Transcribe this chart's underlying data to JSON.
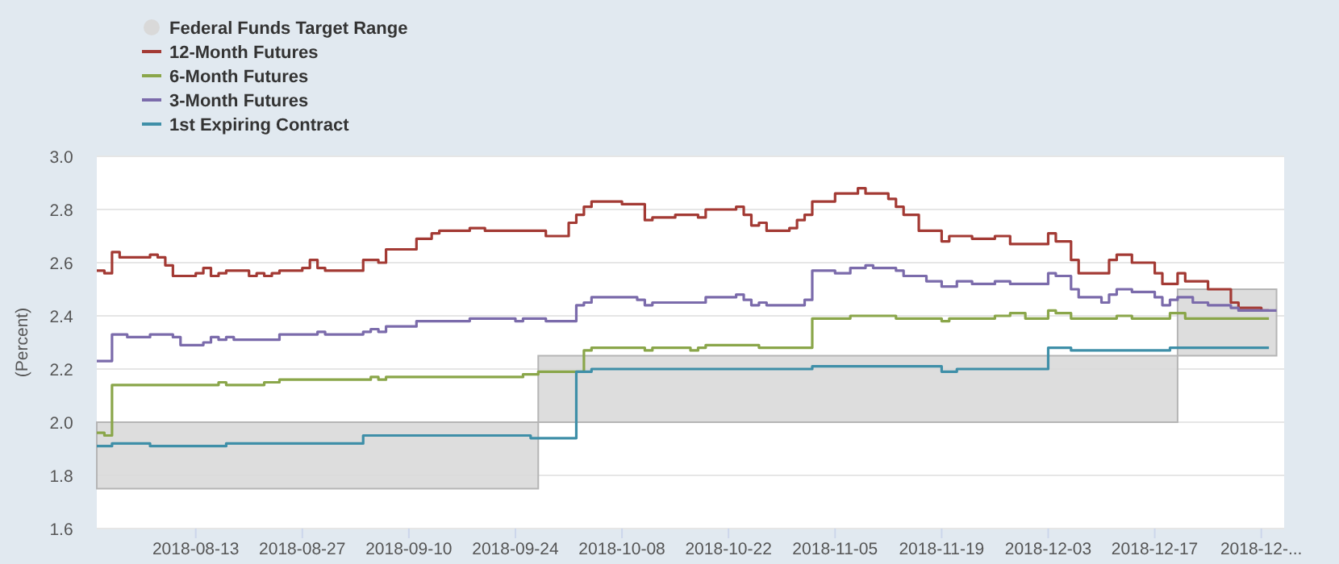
{
  "chart_data": {
    "type": "step",
    "ylabel": "(Percent)",
    "xlim": [
      "2018-07-31",
      "2019-01-03"
    ],
    "xticks": [
      "2018-08-13",
      "2018-08-27",
      "2018-09-10",
      "2018-09-24",
      "2018-10-08",
      "2018-10-22",
      "2018-11-05",
      "2018-11-19",
      "2018-12-03",
      "2018-12-17",
      {
        "value": "2018-12-31",
        "label": "2018-12-..."
      }
    ],
    "ylim": [
      1.6,
      3.0
    ],
    "yticks": [
      {
        "value": 1.6,
        "label": "1.6"
      },
      {
        "value": 1.8,
        "label": "1.8"
      },
      {
        "value": 2.0,
        "label": "2.0"
      },
      {
        "value": 2.2,
        "label": "2.2"
      },
      {
        "value": 2.4,
        "label": "2.4"
      },
      {
        "value": 2.6,
        "label": "2.6"
      },
      {
        "value": 2.8,
        "label": "2.8"
      },
      {
        "value": 3.0,
        "label": "3.0"
      }
    ],
    "grid": "y",
    "legend": "top left",
    "series": [
      {
        "name": "Federal Funds Target Range",
        "type": "area",
        "color": "#d9d9d9",
        "x": [
          "2018-07-31",
          "2018-09-27",
          "2018-12-20",
          "2019-01-02"
        ],
        "values": [
          null,
          null,
          null,
          null
        ],
        "lower": [
          1.75,
          2.0,
          2.25,
          2.25
        ],
        "upper": [
          2.0,
          2.25,
          2.5,
          2.5
        ]
      },
      {
        "name": "12-Month Futures",
        "color": "#a33a34",
        "x": [
          "2018-07-31",
          "2018-08-01",
          "2018-08-02",
          "2018-08-03",
          "2018-08-07",
          "2018-08-08",
          "2018-08-09",
          "2018-08-10",
          "2018-08-13",
          "2018-08-14",
          "2018-08-15",
          "2018-08-16",
          "2018-08-17",
          "2018-08-20",
          "2018-08-21",
          "2018-08-22",
          "2018-08-23",
          "2018-08-24",
          "2018-08-27",
          "2018-08-28",
          "2018-08-29",
          "2018-08-30",
          "2018-09-04",
          "2018-09-06",
          "2018-09-07",
          "2018-09-11",
          "2018-09-13",
          "2018-09-14",
          "2018-09-18",
          "2018-09-20",
          "2018-09-28",
          "2018-10-01",
          "2018-10-02",
          "2018-10-03",
          "2018-10-04",
          "2018-10-08",
          "2018-10-11",
          "2018-10-12",
          "2018-10-15",
          "2018-10-17",
          "2018-10-18",
          "2018-10-19",
          "2018-10-23",
          "2018-10-24",
          "2018-10-25",
          "2018-10-26",
          "2018-10-27",
          "2018-10-30",
          "2018-10-31",
          "2018-11-01",
          "2018-11-02",
          "2018-11-05",
          "2018-11-07",
          "2018-11-08",
          "2018-11-09",
          "2018-11-12",
          "2018-11-13",
          "2018-11-14",
          "2018-11-16",
          "2018-11-19",
          "2018-11-20",
          "2018-11-22",
          "2018-11-23",
          "2018-11-26",
          "2018-11-28",
          "2018-12-03",
          "2018-12-04",
          "2018-12-06",
          "2018-12-07",
          "2018-12-11",
          "2018-12-12",
          "2018-12-14",
          "2018-12-17",
          "2018-12-18",
          "2018-12-20",
          "2018-12-21",
          "2018-12-24",
          "2018-12-27",
          "2018-12-28",
          "2018-12-31",
          "2019-01-01"
        ],
        "values": [
          2.57,
          2.56,
          2.64,
          2.62,
          2.63,
          2.62,
          2.59,
          2.55,
          2.56,
          2.58,
          2.55,
          2.56,
          2.57,
          2.55,
          2.56,
          2.55,
          2.56,
          2.57,
          2.58,
          2.61,
          2.58,
          2.57,
          2.61,
          2.6,
          2.65,
          2.69,
          2.71,
          2.72,
          2.73,
          2.72,
          2.7,
          2.75,
          2.78,
          2.81,
          2.83,
          2.82,
          2.76,
          2.77,
          2.78,
          2.78,
          2.77,
          2.8,
          2.81,
          2.78,
          2.74,
          2.75,
          2.72,
          2.73,
          2.76,
          2.78,
          2.83,
          2.86,
          2.86,
          2.88,
          2.86,
          2.84,
          2.81,
          2.78,
          2.72,
          2.68,
          2.7,
          2.7,
          2.69,
          2.7,
          2.67,
          2.71,
          2.68,
          2.61,
          2.56,
          2.61,
          2.63,
          2.6,
          2.56,
          2.52,
          2.56,
          2.53,
          2.5,
          2.45,
          2.43,
          2.42,
          2.42
        ]
      },
      {
        "name": "6-Month Futures",
        "color": "#8aa64a",
        "x": [
          "2018-07-31",
          "2018-08-01",
          "2018-08-02",
          "2018-08-16",
          "2018-08-17",
          "2018-08-22",
          "2018-08-24",
          "2018-09-05",
          "2018-09-06",
          "2018-09-07",
          "2018-09-25",
          "2018-09-27",
          "2018-10-03",
          "2018-10-04",
          "2018-10-11",
          "2018-10-12",
          "2018-10-17",
          "2018-10-18",
          "2018-10-19",
          "2018-10-26",
          "2018-11-02",
          "2018-11-07",
          "2018-11-13",
          "2018-11-19",
          "2018-11-20",
          "2018-11-26",
          "2018-11-28",
          "2018-11-30",
          "2018-12-03",
          "2018-12-04",
          "2018-12-06",
          "2018-12-12",
          "2018-12-14",
          "2018-12-19",
          "2018-12-21",
          "2019-01-01"
        ],
        "values": [
          1.96,
          1.95,
          2.14,
          2.15,
          2.14,
          2.15,
          2.16,
          2.17,
          2.16,
          2.17,
          2.18,
          2.19,
          2.27,
          2.28,
          2.27,
          2.28,
          2.27,
          2.28,
          2.29,
          2.28,
          2.39,
          2.4,
          2.39,
          2.38,
          2.39,
          2.4,
          2.41,
          2.39,
          2.42,
          2.41,
          2.39,
          2.4,
          2.39,
          2.41,
          2.39,
          2.39
        ]
      },
      {
        "name": "3-Month Futures",
        "color": "#7b6bab",
        "x": [
          "2018-07-31",
          "2018-08-02",
          "2018-08-04",
          "2018-08-07",
          "2018-08-10",
          "2018-08-11",
          "2018-08-14",
          "2018-08-15",
          "2018-08-16",
          "2018-08-17",
          "2018-08-18",
          "2018-08-24",
          "2018-08-29",
          "2018-08-30",
          "2018-09-04",
          "2018-09-05",
          "2018-09-06",
          "2018-09-07",
          "2018-09-11",
          "2018-09-18",
          "2018-09-24",
          "2018-09-25",
          "2018-09-28",
          "2018-10-02",
          "2018-10-03",
          "2018-10-04",
          "2018-10-10",
          "2018-10-11",
          "2018-10-12",
          "2018-10-19",
          "2018-10-23",
          "2018-10-24",
          "2018-10-25",
          "2018-10-26",
          "2018-10-27",
          "2018-11-01",
          "2018-11-02",
          "2018-11-05",
          "2018-11-07",
          "2018-11-08",
          "2018-11-09",
          "2018-11-10",
          "2018-11-13",
          "2018-11-14",
          "2018-11-17",
          "2018-11-19",
          "2018-11-21",
          "2018-11-23",
          "2018-11-26",
          "2018-11-28",
          "2018-12-03",
          "2018-12-04",
          "2018-12-06",
          "2018-12-07",
          "2018-12-10",
          "2018-12-11",
          "2018-12-12",
          "2018-12-14",
          "2018-12-17",
          "2018-12-18",
          "2018-12-19",
          "2018-12-20",
          "2018-12-22",
          "2018-12-24",
          "2018-12-27",
          "2018-12-28",
          "2019-01-02"
        ],
        "values": [
          2.23,
          2.33,
          2.32,
          2.33,
          2.32,
          2.29,
          2.3,
          2.32,
          2.31,
          2.32,
          2.31,
          2.33,
          2.34,
          2.33,
          2.34,
          2.35,
          2.34,
          2.36,
          2.38,
          2.39,
          2.38,
          2.39,
          2.38,
          2.44,
          2.45,
          2.47,
          2.46,
          2.44,
          2.45,
          2.47,
          2.48,
          2.46,
          2.44,
          2.45,
          2.44,
          2.46,
          2.57,
          2.56,
          2.58,
          2.58,
          2.59,
          2.58,
          2.57,
          2.55,
          2.53,
          2.51,
          2.53,
          2.52,
          2.53,
          2.52,
          2.56,
          2.55,
          2.5,
          2.47,
          2.45,
          2.48,
          2.5,
          2.49,
          2.47,
          2.44,
          2.46,
          2.47,
          2.45,
          2.44,
          2.43,
          2.42,
          2.42
        ]
      },
      {
        "name": "1st Expiring Contract",
        "color": "#3f8fa8",
        "x": [
          "2018-07-31",
          "2018-08-02",
          "2018-08-07",
          "2018-08-17",
          "2018-09-04",
          "2018-09-26",
          "2018-10-02",
          "2018-10-04",
          "2018-11-02",
          "2018-11-19",
          "2018-11-21",
          "2018-12-03",
          "2018-12-06",
          "2018-12-19",
          "2019-01-01"
        ],
        "values": [
          1.91,
          1.92,
          1.91,
          1.92,
          1.95,
          1.94,
          2.19,
          2.2,
          2.21,
          2.19,
          2.2,
          2.28,
          2.27,
          2.28,
          2.28
        ]
      }
    ]
  }
}
